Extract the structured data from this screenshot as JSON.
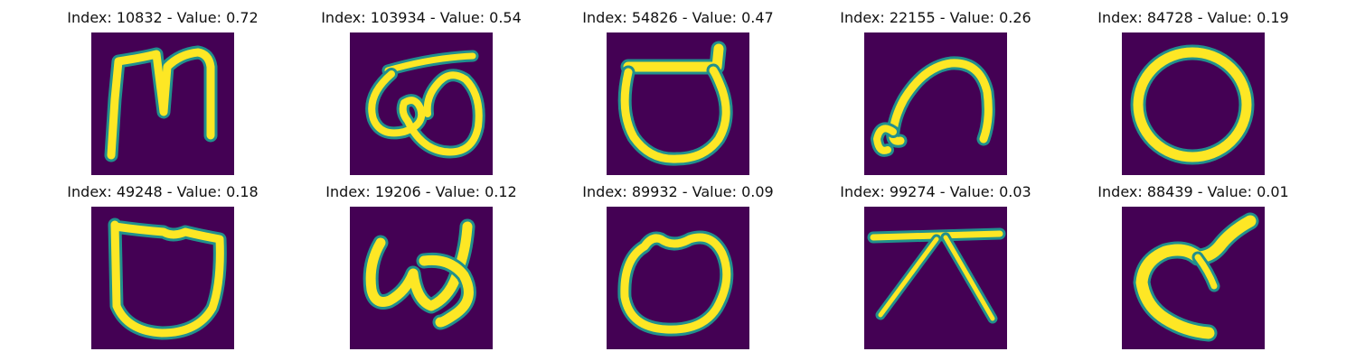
{
  "colors": {
    "background": "#440154",
    "edge": "#21908d",
    "stroke": "#fde725",
    "highlight": "#bddf26"
  },
  "panels": [
    {
      "index": "10832",
      "value": "0.72",
      "title": "Index: 10832 - Value: 0.72",
      "glyph": "m-shaped"
    },
    {
      "index": "103934",
      "value": "0.54",
      "title": "Index: 103934 - Value: 0.54",
      "glyph": "looped-double-curve"
    },
    {
      "index": "54826",
      "value": "0.47",
      "title": "Index: 54826 - Value: 0.47",
      "glyph": "round-with-top-bar"
    },
    {
      "index": "22155",
      "value": "0.26",
      "title": "Index: 22155 - Value: 0.26",
      "glyph": "arch-with-hook"
    },
    {
      "index": "84728",
      "value": "0.19",
      "title": "Index: 84728 - Value: 0.19",
      "glyph": "circle"
    },
    {
      "index": "49248",
      "value": "0.18",
      "title": "Index: 49248 - Value: 0.18",
      "glyph": "shield-shape"
    },
    {
      "index": "19206",
      "value": "0.12",
      "title": "Index: 19206 - Value: 0.12",
      "glyph": "s-curl"
    },
    {
      "index": "89932",
      "value": "0.09",
      "title": "Index: 89932 - Value: 0.09",
      "glyph": "rounded-loop"
    },
    {
      "index": "99274",
      "value": "0.03",
      "title": "Index: 99274 - Value: 0.03",
      "glyph": "tent-with-bar"
    },
    {
      "index": "88439",
      "value": "0.01",
      "title": "Index: 88439 - Value: 0.01",
      "glyph": "curled-hook"
    }
  ]
}
